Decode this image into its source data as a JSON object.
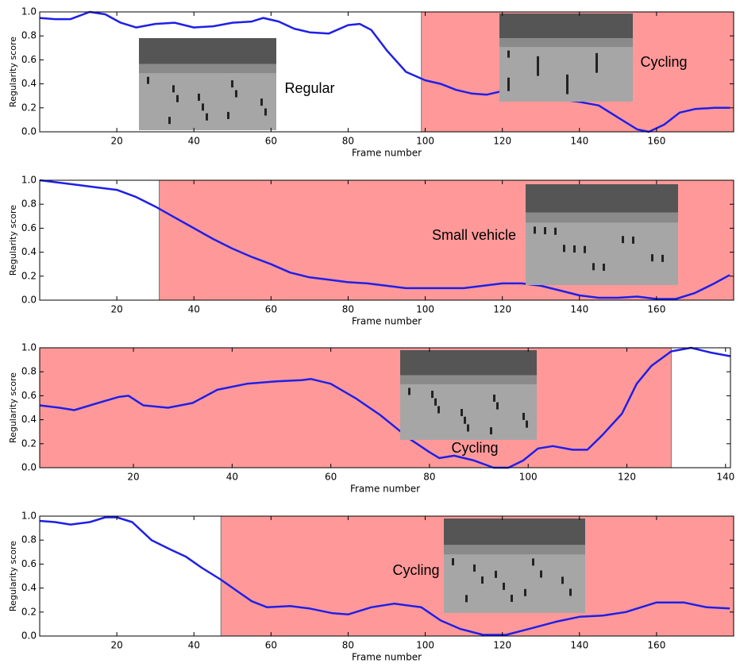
{
  "chart_data": [
    {
      "type": "line",
      "xlabel": "Frame number",
      "ylabel": "Regularity score",
      "color": "#1f1fe8",
      "x": [
        0,
        4,
        8,
        13,
        17,
        21,
        25,
        30,
        35,
        40,
        45,
        50,
        55,
        58,
        62,
        66,
        70,
        75,
        80,
        83,
        86,
        90,
        95,
        100,
        104,
        108,
        112,
        116,
        120,
        125,
        130,
        135,
        140,
        145,
        150,
        155,
        158,
        162,
        166,
        170,
        175,
        179
      ],
      "values": [
        0.95,
        0.94,
        0.94,
        1.0,
        0.98,
        0.91,
        0.87,
        0.9,
        0.91,
        0.87,
        0.88,
        0.91,
        0.92,
        0.95,
        0.92,
        0.86,
        0.83,
        0.82,
        0.89,
        0.9,
        0.85,
        0.68,
        0.5,
        0.43,
        0.4,
        0.35,
        0.32,
        0.31,
        0.34,
        0.32,
        0.3,
        0.27,
        0.25,
        0.22,
        0.12,
        0.02,
        0.0,
        0.06,
        0.16,
        0.19,
        0.2,
        0.2
      ],
      "highlight": {
        "start": 99,
        "end": 180,
        "color": "#ff9999"
      },
      "annotations": [
        "Regular",
        "Cycling"
      ],
      "xlim": [
        0,
        180
      ],
      "xticks": [
        20,
        40,
        60,
        80,
        100,
        120,
        140,
        160
      ],
      "ylim": [
        0,
        1
      ],
      "yticks": [
        {
          "value": 0,
          "label": "0.0"
        },
        0.2,
        0.4,
        0.6,
        0.8,
        {
          "value": 1,
          "label": "1.0"
        }
      ]
    },
    {
      "type": "line",
      "xlabel": "Frame number",
      "ylabel": "Regularity score",
      "color": "#1f1fe8",
      "x": [
        0,
        5,
        10,
        15,
        20,
        25,
        30,
        35,
        40,
        45,
        50,
        55,
        60,
        65,
        70,
        75,
        80,
        85,
        90,
        95,
        100,
        105,
        110,
        115,
        120,
        125,
        130,
        135,
        140,
        145,
        150,
        155,
        160,
        165,
        170,
        175,
        179
      ],
      "values": [
        1.0,
        0.98,
        0.96,
        0.94,
        0.92,
        0.86,
        0.78,
        0.69,
        0.6,
        0.51,
        0.43,
        0.36,
        0.3,
        0.23,
        0.19,
        0.17,
        0.15,
        0.14,
        0.12,
        0.1,
        0.1,
        0.1,
        0.1,
        0.12,
        0.14,
        0.14,
        0.12,
        0.08,
        0.04,
        0.02,
        0.02,
        0.03,
        0.01,
        0.01,
        0.06,
        0.14,
        0.21
      ],
      "highlight": {
        "start": 31,
        "end": 180,
        "color": "#ff9999"
      },
      "annotations": [
        "Small vehicle"
      ],
      "xlim": [
        0,
        180
      ],
      "xticks": [
        20,
        40,
        60,
        80,
        100,
        120,
        140,
        160
      ],
      "ylim": [
        0,
        1
      ],
      "yticks": [
        {
          "value": 0,
          "label": "0.0"
        },
        0.2,
        0.4,
        0.6,
        0.8,
        {
          "value": 1,
          "label": "1.0"
        }
      ]
    },
    {
      "type": "line",
      "xlabel": "Frame number",
      "ylabel": "Regularity score",
      "color": "#1f1fe8",
      "x": [
        1,
        5,
        8,
        12,
        17,
        19,
        22,
        27,
        32,
        37,
        43,
        49,
        54,
        56,
        60,
        65,
        70,
        73,
        76,
        80,
        82,
        85,
        89,
        93,
        96,
        99,
        102,
        105,
        109,
        112,
        115,
        119,
        122,
        125,
        129,
        133,
        137,
        141
      ],
      "values": [
        0.52,
        0.5,
        0.48,
        0.53,
        0.59,
        0.6,
        0.52,
        0.5,
        0.54,
        0.65,
        0.7,
        0.72,
        0.73,
        0.74,
        0.7,
        0.58,
        0.44,
        0.34,
        0.24,
        0.13,
        0.08,
        0.1,
        0.06,
        0.0,
        0.0,
        0.06,
        0.16,
        0.18,
        0.15,
        0.15,
        0.27,
        0.45,
        0.7,
        0.85,
        0.97,
        1.0,
        0.96,
        0.93
      ],
      "highlight": {
        "start": 1,
        "end": 129,
        "color": "#ff9999"
      },
      "annotations": [
        "Cycling"
      ],
      "xlim": [
        1,
        141
      ],
      "xticks": [
        20,
        40,
        60,
        80,
        100,
        120,
        140
      ],
      "ylim": [
        0,
        1
      ],
      "yticks": [
        {
          "value": 0,
          "label": "0.0"
        },
        0.2,
        0.4,
        0.6,
        0.8,
        {
          "value": 1,
          "label": "1.0"
        }
      ]
    },
    {
      "type": "line",
      "xlabel": "Frame number",
      "ylabel": "Regularity score",
      "color": "#1f1fe8",
      "x": [
        0,
        4,
        8,
        13,
        17,
        20,
        24,
        29,
        34,
        38,
        42,
        47,
        51,
        55,
        59,
        65,
        70,
        76,
        80,
        86,
        92,
        99,
        104,
        109,
        115,
        121,
        127,
        134,
        140,
        146,
        152,
        160,
        167,
        173,
        179
      ],
      "values": [
        0.96,
        0.95,
        0.93,
        0.95,
        0.99,
        0.99,
        0.95,
        0.8,
        0.72,
        0.66,
        0.57,
        0.47,
        0.38,
        0.29,
        0.24,
        0.25,
        0.23,
        0.19,
        0.18,
        0.24,
        0.27,
        0.24,
        0.13,
        0.06,
        0.01,
        0.01,
        0.06,
        0.12,
        0.16,
        0.17,
        0.2,
        0.28,
        0.28,
        0.24,
        0.23
      ],
      "highlight": {
        "start": 47,
        "end": 180,
        "color": "#ff9999"
      },
      "annotations": [
        "Cycling"
      ],
      "xlim": [
        0,
        180
      ],
      "xticks": [
        20,
        40,
        60,
        80,
        100,
        120,
        140,
        160
      ],
      "ylim": [
        0,
        1
      ],
      "yticks": [
        {
          "value": 0,
          "label": "0.0"
        },
        0.2,
        0.4,
        0.6,
        0.8,
        {
          "value": 1,
          "label": "1.0"
        }
      ]
    }
  ]
}
